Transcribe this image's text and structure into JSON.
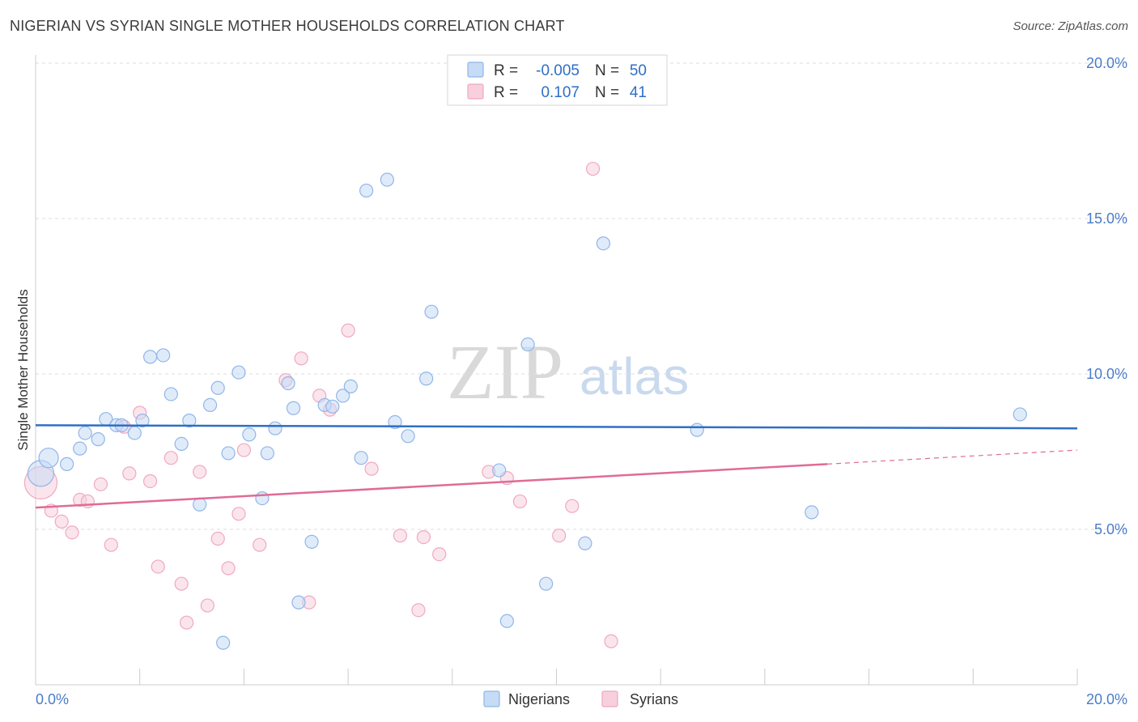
{
  "title": "NIGERIAN VS SYRIAN SINGLE MOTHER HOUSEHOLDS CORRELATION CHART",
  "source": "Source: ZipAtlas.com",
  "chart_data": {
    "type": "scatter",
    "ylabel": "Single Mother Households",
    "xlabel": "",
    "xlim": [
      0,
      20
    ],
    "ylim": [
      0,
      20
    ],
    "x_tick_labels": [
      "0.0%",
      "20.0%"
    ],
    "y_ticks": [
      5,
      10,
      15,
      20
    ],
    "y_tick_labels": [
      "5.0%",
      "10.0%",
      "15.0%",
      "20.0%"
    ],
    "grid": true,
    "legend_position": "top-center",
    "watermark": {
      "zip": "ZIP",
      "atlas": "atlas"
    },
    "stats": [
      {
        "series": "Nigerians",
        "r_label": "R =",
        "r_value": "-0.005",
        "n_label": "N =",
        "n_value": "50"
      },
      {
        "series": "Syrians",
        "r_label": "R =",
        "r_value": "0.107",
        "n_label": "N =",
        "n_value": "41"
      }
    ],
    "series": [
      {
        "name": "Nigerians",
        "color": "#8fb6e8",
        "fill": "#c6dbf5",
        "trend_color": "#2f6fc4",
        "trend": {
          "x": [
            0,
            20
          ],
          "y": [
            8.35,
            8.25
          ]
        },
        "points": [
          {
            "x": 0.1,
            "y": 6.8,
            "s": 3
          },
          {
            "x": 0.25,
            "y": 7.3,
            "s": 2
          },
          {
            "x": 0.6,
            "y": 7.1
          },
          {
            "x": 0.85,
            "y": 7.6
          },
          {
            "x": 1.2,
            "y": 7.9
          },
          {
            "x": 0.95,
            "y": 8.1
          },
          {
            "x": 1.35,
            "y": 8.55
          },
          {
            "x": 1.55,
            "y": 8.35
          },
          {
            "x": 1.65,
            "y": 8.35
          },
          {
            "x": 1.9,
            "y": 8.1
          },
          {
            "x": 2.05,
            "y": 8.5
          },
          {
            "x": 2.2,
            "y": 10.55
          },
          {
            "x": 2.45,
            "y": 10.6
          },
          {
            "x": 2.6,
            "y": 9.35
          },
          {
            "x": 2.8,
            "y": 7.75
          },
          {
            "x": 2.95,
            "y": 8.5
          },
          {
            "x": 3.15,
            "y": 5.8
          },
          {
            "x": 3.35,
            "y": 9.0
          },
          {
            "x": 3.5,
            "y": 9.55
          },
          {
            "x": 3.7,
            "y": 7.45
          },
          {
            "x": 3.9,
            "y": 10.05
          },
          {
            "x": 4.1,
            "y": 8.05
          },
          {
            "x": 4.35,
            "y": 6.0
          },
          {
            "x": 4.45,
            "y": 7.45
          },
          {
            "x": 4.6,
            "y": 8.25
          },
          {
            "x": 4.85,
            "y": 9.7
          },
          {
            "x": 4.95,
            "y": 8.9
          },
          {
            "x": 5.3,
            "y": 4.6
          },
          {
            "x": 5.55,
            "y": 9.0
          },
          {
            "x": 5.7,
            "y": 8.95
          },
          {
            "x": 5.9,
            "y": 9.3
          },
          {
            "x": 6.05,
            "y": 9.6
          },
          {
            "x": 6.25,
            "y": 7.3
          },
          {
            "x": 6.9,
            "y": 8.45
          },
          {
            "x": 6.35,
            "y": 15.9
          },
          {
            "x": 6.75,
            "y": 16.25
          },
          {
            "x": 7.15,
            "y": 8.0
          },
          {
            "x": 7.5,
            "y": 9.85
          },
          {
            "x": 7.6,
            "y": 12.0
          },
          {
            "x": 8.9,
            "y": 6.9
          },
          {
            "x": 9.45,
            "y": 10.95
          },
          {
            "x": 9.8,
            "y": 3.25
          },
          {
            "x": 10.55,
            "y": 4.55
          },
          {
            "x": 10.9,
            "y": 14.2
          },
          {
            "x": 12.7,
            "y": 8.2
          },
          {
            "x": 14.9,
            "y": 5.55
          },
          {
            "x": 18.9,
            "y": 8.7
          },
          {
            "x": 9.05,
            "y": 2.05
          },
          {
            "x": 5.05,
            "y": 2.65
          },
          {
            "x": 3.6,
            "y": 1.35
          }
        ]
      },
      {
        "name": "Syrians",
        "color": "#f0a8c2",
        "fill": "#f8cfdd",
        "trend_color": "#e06b97",
        "trend": {
          "x": [
            0,
            15.2
          ],
          "y": [
            5.7,
            7.1
          ]
        },
        "trend_dashed": {
          "x": [
            15.2,
            20
          ],
          "y": [
            7.1,
            7.55
          ]
        },
        "points": [
          {
            "x": 0.1,
            "y": 6.5,
            "s": 4
          },
          {
            "x": 0.3,
            "y": 5.6
          },
          {
            "x": 0.5,
            "y": 5.25
          },
          {
            "x": 0.7,
            "y": 4.9
          },
          {
            "x": 0.85,
            "y": 5.95
          },
          {
            "x": 1.0,
            "y": 5.9
          },
          {
            "x": 1.25,
            "y": 6.45
          },
          {
            "x": 1.45,
            "y": 4.5
          },
          {
            "x": 1.7,
            "y": 8.3
          },
          {
            "x": 1.8,
            "y": 6.8
          },
          {
            "x": 2.0,
            "y": 8.75
          },
          {
            "x": 2.2,
            "y": 6.55
          },
          {
            "x": 2.35,
            "y": 3.8
          },
          {
            "x": 2.6,
            "y": 7.3
          },
          {
            "x": 2.8,
            "y": 3.25
          },
          {
            "x": 2.9,
            "y": 2.0
          },
          {
            "x": 3.15,
            "y": 6.85
          },
          {
            "x": 3.3,
            "y": 2.55
          },
          {
            "x": 3.5,
            "y": 4.7
          },
          {
            "x": 3.7,
            "y": 3.75
          },
          {
            "x": 3.9,
            "y": 5.5
          },
          {
            "x": 4.0,
            "y": 7.55
          },
          {
            "x": 4.3,
            "y": 4.5
          },
          {
            "x": 4.8,
            "y": 9.8
          },
          {
            "x": 5.1,
            "y": 10.5
          },
          {
            "x": 5.25,
            "y": 2.65
          },
          {
            "x": 5.45,
            "y": 9.3
          },
          {
            "x": 5.65,
            "y": 8.85
          },
          {
            "x": 6.0,
            "y": 11.4
          },
          {
            "x": 6.45,
            "y": 6.95
          },
          {
            "x": 7.0,
            "y": 4.8
          },
          {
            "x": 7.35,
            "y": 2.4
          },
          {
            "x": 7.45,
            "y": 4.75
          },
          {
            "x": 7.75,
            "y": 4.2
          },
          {
            "x": 8.7,
            "y": 6.85
          },
          {
            "x": 9.05,
            "y": 6.65
          },
          {
            "x": 9.3,
            "y": 5.9
          },
          {
            "x": 10.3,
            "y": 5.75
          },
          {
            "x": 10.05,
            "y": 4.8
          },
          {
            "x": 10.7,
            "y": 16.6
          },
          {
            "x": 11.05,
            "y": 1.4
          }
        ]
      }
    ]
  },
  "colors": {
    "grid": "#dddddd",
    "axis": "#cccccc",
    "tick_label": "#4a7cc9"
  }
}
